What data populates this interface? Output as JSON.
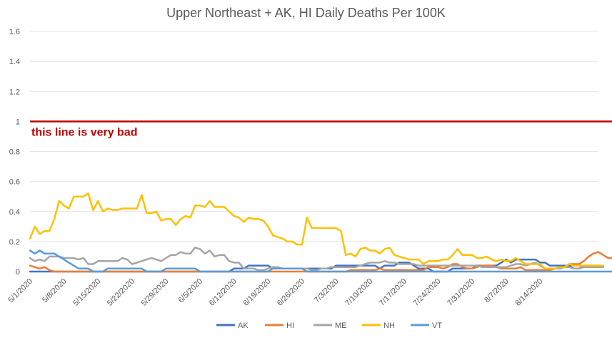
{
  "chart_data": {
    "type": "line",
    "title": "Upper Northeast + AK, HI Daily Deaths Per 100K",
    "xlabel": "",
    "ylabel": "",
    "ylim": [
      0,
      1.6
    ],
    "yticks": [
      "0",
      "0.2",
      "0.4",
      "0.6",
      "0.8",
      "1",
      "1.2",
      "1.4",
      "1.6"
    ],
    "x_tick_labels": [
      "5/1/2020",
      "5/8/2020",
      "5/15/2020",
      "5/22/2020",
      "5/29/2020",
      "6/5/2020",
      "6/12/2020",
      "6/19/2020",
      "6/26/2020",
      "7/3/2020",
      "7/10/2020",
      "7/17/2020",
      "7/24/2020",
      "7/31/2020",
      "8/7/2020",
      "8/14/2020"
    ],
    "x_start": "5/1/2020",
    "grid": true,
    "legend_position": "bottom",
    "reference_line": {
      "value": 1,
      "color": "#c00000",
      "label": "this line is very bad"
    },
    "series": [
      {
        "name": "AK",
        "color": "#4472c4",
        "values": [
          0,
          0,
          0,
          0,
          0,
          0,
          0,
          0,
          0,
          0,
          0,
          0,
          0,
          0,
          0,
          0,
          0,
          0,
          0,
          0,
          0,
          0,
          0,
          0,
          0,
          0,
          0,
          0,
          0,
          0,
          0,
          0,
          0,
          0,
          0,
          0,
          0,
          0,
          0,
          0,
          0,
          0,
          0.02,
          0.02,
          0.02,
          0.04,
          0.04,
          0.04,
          0.04,
          0.04,
          0.02,
          0.02,
          0.02,
          0.02,
          0.02,
          0.02,
          0.02,
          0.02,
          0.02,
          0.02,
          0.02,
          0.02,
          0.02,
          0.04,
          0.04,
          0.04,
          0.04,
          0.04,
          0.04,
          0.04,
          0.04,
          0.04,
          0.02,
          0.04,
          0.04,
          0.04,
          0.06,
          0.06,
          0.06,
          0.04,
          0.02,
          0.02,
          0.02,
          0,
          0,
          0,
          0,
          0.02,
          0.02,
          0.02,
          0.02,
          0.02,
          0.04,
          0.04,
          0.04,
          0.04,
          0.04,
          0.06,
          0.08,
          0.06,
          0.08,
          0.08,
          0.08,
          0.08,
          0.08,
          0.06,
          0.06,
          0.04,
          0.04,
          0.04,
          0.04,
          0.04,
          0.02,
          0.02,
          0.04,
          0.04,
          0.04,
          0.04
        ]
      },
      {
        "name": "HI",
        "color": "#ed7d31",
        "values": [
          0.04,
          0.03,
          0.02,
          0.03,
          0.01,
          0,
          0,
          0,
          0,
          0,
          0,
          0,
          0,
          0,
          0,
          0,
          0,
          0,
          0,
          0,
          0,
          0,
          0,
          0,
          0,
          0,
          0,
          0,
          0,
          0,
          0,
          0,
          0,
          0,
          0,
          0,
          0,
          0,
          0,
          0,
          0,
          0,
          0,
          0,
          0,
          0,
          0,
          0,
          0,
          0,
          0,
          0,
          0,
          0,
          0,
          0,
          0,
          0,
          0,
          0,
          0,
          0,
          0,
          0,
          0,
          0,
          0.01,
          0.01,
          0.01,
          0.01,
          0.01,
          0.01,
          0.02,
          0.01,
          0.01,
          0.01,
          0.01,
          0.01,
          0.01,
          0.01,
          0.01,
          0.01,
          0.03,
          0.03,
          0.03,
          0.02,
          0.03,
          0.05,
          0.05,
          0.03,
          0.02,
          0.02,
          0.03,
          0.04,
          0.04,
          0.04,
          0.03,
          0.02,
          0.02,
          0.02,
          0.02,
          0.03,
          0.01,
          0.01,
          0.01,
          0.01,
          0.01,
          0.01,
          0.02,
          0.02,
          0.03,
          0.05,
          0.05,
          0.05,
          0.07,
          0.1,
          0.12,
          0.13,
          0.11,
          0.09,
          0.09
        ]
      },
      {
        "name": "ME",
        "color": "#a5a5a5",
        "values": [
          0.09,
          0.07,
          0.08,
          0.07,
          0.1,
          0.1,
          0.1,
          0.09,
          0.09,
          0.09,
          0.08,
          0.09,
          0.05,
          0.05,
          0.07,
          0.07,
          0.07,
          0.07,
          0.07,
          0.09,
          0.08,
          0.05,
          0.06,
          0.07,
          0.08,
          0.09,
          0.08,
          0.07,
          0.09,
          0.11,
          0.11,
          0.13,
          0.12,
          0.12,
          0.16,
          0.15,
          0.12,
          0.14,
          0.1,
          0.11,
          0.11,
          0.07,
          0.06,
          0.06,
          0.02,
          0.02,
          0.02,
          0.01,
          0.01,
          0.02,
          0.03,
          0.03,
          0.02,
          0.02,
          0.02,
          0.02,
          0.02,
          0.02,
          0.01,
          0.01,
          0.02,
          0.02,
          0.03,
          0.03,
          0.03,
          0.03,
          0.03,
          0.03,
          0.04,
          0.05,
          0.06,
          0.06,
          0.06,
          0.07,
          0.06,
          0.06,
          0.05,
          0.05,
          0.05,
          0.05,
          0.04,
          0.04,
          0.04,
          0.04,
          0.04,
          0.04,
          0.04,
          0.04,
          0.04,
          0.04,
          0.04,
          0.04,
          0.04,
          0.03,
          0.03,
          0.03,
          0.03,
          0.03,
          0.03,
          0.04,
          0.05,
          0.05,
          0.04,
          0.05,
          0.06,
          0.04,
          0.02,
          0.02,
          0.02,
          0.02,
          0.03,
          0.03,
          0.02,
          0.02,
          0.03,
          0.03,
          0.03,
          0.03,
          0.03
        ]
      },
      {
        "name": "NH",
        "color": "#ffc000",
        "values": [
          0.22,
          0.3,
          0.25,
          0.27,
          0.27,
          0.35,
          0.47,
          0.44,
          0.42,
          0.5,
          0.5,
          0.5,
          0.52,
          0.41,
          0.47,
          0.4,
          0.42,
          0.41,
          0.41,
          0.42,
          0.42,
          0.42,
          0.42,
          0.51,
          0.39,
          0.39,
          0.4,
          0.34,
          0.35,
          0.35,
          0.31,
          0.35,
          0.37,
          0.36,
          0.44,
          0.44,
          0.43,
          0.47,
          0.43,
          0.43,
          0.43,
          0.4,
          0.37,
          0.36,
          0.33,
          0.36,
          0.35,
          0.35,
          0.34,
          0.3,
          0.24,
          0.23,
          0.22,
          0.2,
          0.2,
          0.18,
          0.18,
          0.36,
          0.29,
          0.29,
          0.29,
          0.29,
          0.29,
          0.29,
          0.27,
          0.11,
          0.12,
          0.1,
          0.15,
          0.16,
          0.14,
          0.14,
          0.12,
          0.15,
          0.16,
          0.11,
          0.1,
          0.09,
          0.08,
          0.08,
          0.08,
          0.05,
          0.07,
          0.07,
          0.07,
          0.08,
          0.08,
          0.11,
          0.15,
          0.11,
          0.11,
          0.11,
          0.09,
          0.09,
          0.1,
          0.08,
          0.07,
          0.08,
          0.07,
          0.07,
          0.09,
          0.07,
          0.05,
          0.05,
          0.05,
          0.05,
          0.02,
          0.02,
          0.02,
          0.03,
          0.03,
          0.05,
          0.04,
          0.04,
          0.04,
          0.04,
          0.04,
          0.04,
          0.04
        ]
      },
      {
        "name": "VT",
        "color": "#5b9bd5",
        "values": [
          0.14,
          0.12,
          0.14,
          0.12,
          0.12,
          0.12,
          0.1,
          0.08,
          0.06,
          0.04,
          0.02,
          0.02,
          0.02,
          0,
          0,
          0,
          0.02,
          0.02,
          0.02,
          0.02,
          0.02,
          0.02,
          0.02,
          0.02,
          0,
          0,
          0,
          0,
          0.02,
          0.02,
          0.02,
          0.02,
          0.02,
          0.02,
          0.02,
          0,
          0,
          0,
          0,
          0,
          0,
          0,
          0,
          0,
          0,
          0,
          0,
          0,
          0,
          0,
          0.02,
          0.02,
          0.02,
          0.02,
          0.02,
          0.02,
          0.02,
          0,
          0,
          0,
          0,
          0,
          0,
          0,
          0,
          0,
          0,
          0,
          0,
          0,
          0,
          0,
          0,
          0,
          0,
          0,
          0,
          0,
          0,
          0,
          0,
          0,
          0,
          0,
          0,
          0,
          0,
          0,
          0,
          0,
          0,
          0,
          0,
          0,
          0,
          0,
          0,
          0,
          0,
          0,
          0,
          0,
          0,
          0,
          0,
          0,
          0,
          0,
          0,
          0,
          0,
          0,
          0,
          0,
          0,
          0,
          0,
          0,
          0,
          0,
          0
        ]
      }
    ]
  }
}
